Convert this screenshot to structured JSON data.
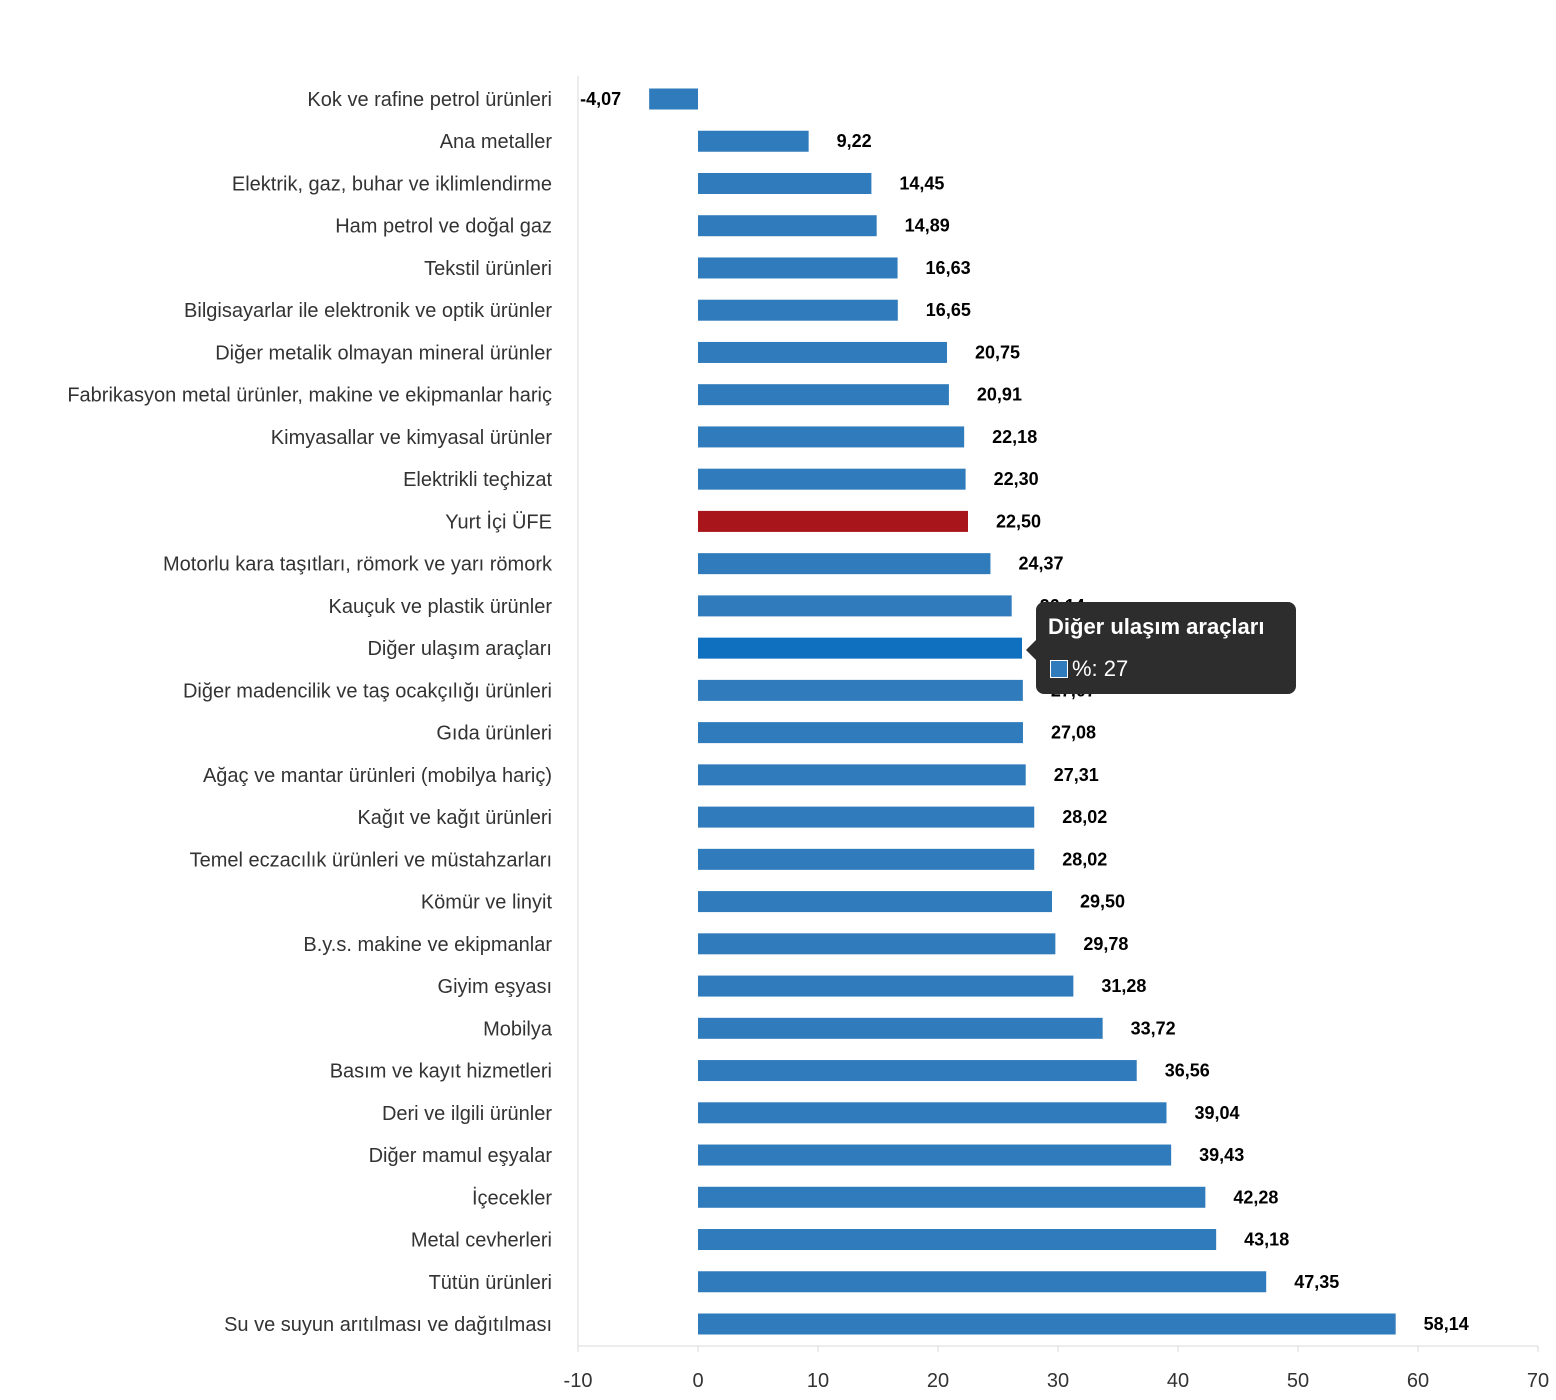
{
  "chart_data": {
    "type": "bar",
    "orientation": "horizontal",
    "title": "",
    "xlabel": "",
    "ylabel": "",
    "xlim": [
      -10,
      70
    ],
    "x_ticks": [
      "-10",
      "0",
      "10",
      "20",
      "30",
      "40",
      "50",
      "60",
      "70"
    ],
    "grid": false,
    "legend": "none",
    "categories": [
      "Kok ve rafine petrol ürünleri",
      "Ana metaller",
      "Elektrik, gaz, buhar ve iklimlendirme",
      "Ham petrol ve doğal gaz",
      "Tekstil ürünleri",
      "Bilgisayarlar ile elektronik ve optik ürünler",
      "Diğer metalik olmayan mineral ürünler",
      "Fabrikasyon metal ürünler, makine ve ekipmanlar hariç",
      "Kimyasallar ve kimyasal ürünler",
      "Elektrikli teçhizat",
      "Yurt İçi ÜFE",
      "Motorlu kara taşıtları, römork ve yarı römork",
      "Kauçuk ve plastik ürünler",
      "Diğer ulaşım araçları",
      "Diğer madencilik ve taş ocakçılığı ürünleri",
      "Gıda ürünleri",
      "Ağaç ve mantar ürünleri (mobilya hariç)",
      "Kağıt ve kağıt ürünleri",
      "Temel eczacılık ürünleri ve müstahzarları",
      "Kömür ve linyit",
      "B.y.s. makine ve ekipmanlar",
      "Giyim eşyası",
      "Mobilya",
      "Basım ve kayıt hizmetleri",
      "Deri ve ilgili ürünler",
      "Diğer mamul eşyalar",
      "İçecekler",
      "Metal cevherleri",
      "Tütün ürünleri",
      "Su ve suyun arıtılması ve dağıtılması"
    ],
    "values": [
      -4.07,
      9.22,
      14.45,
      14.89,
      16.63,
      16.65,
      20.75,
      20.91,
      22.18,
      22.3,
      22.5,
      24.37,
      26.14,
      27.0,
      27.07,
      27.08,
      27.31,
      28.02,
      28.02,
      29.5,
      29.78,
      31.28,
      33.72,
      36.56,
      39.04,
      39.43,
      42.28,
      43.18,
      47.35,
      58.14
    ],
    "value_labels": [
      "-4,07",
      "9,22",
      "14,45",
      "14,89",
      "16,63",
      "16,65",
      "20,75",
      "20,91",
      "22,18",
      "22,30",
      "22,50",
      "24,37",
      "26,14",
      "27,00",
      "27,07",
      "27,08",
      "27,31",
      "28,02",
      "28,02",
      "29,50",
      "29,78",
      "31,28",
      "33,72",
      "36,56",
      "39,04",
      "39,43",
      "42,28",
      "43,18",
      "47,35",
      "58,14"
    ],
    "colors": {
      "default": "#2f7bbb",
      "highlight": "#a8151b",
      "hover": "#0f70c0"
    },
    "highlight_index": 10,
    "hover_index": 13
  },
  "tooltip": {
    "title": "Diğer ulaşım araçları",
    "value_text": "%: 27",
    "swatch_color": "#2f7bbb"
  }
}
